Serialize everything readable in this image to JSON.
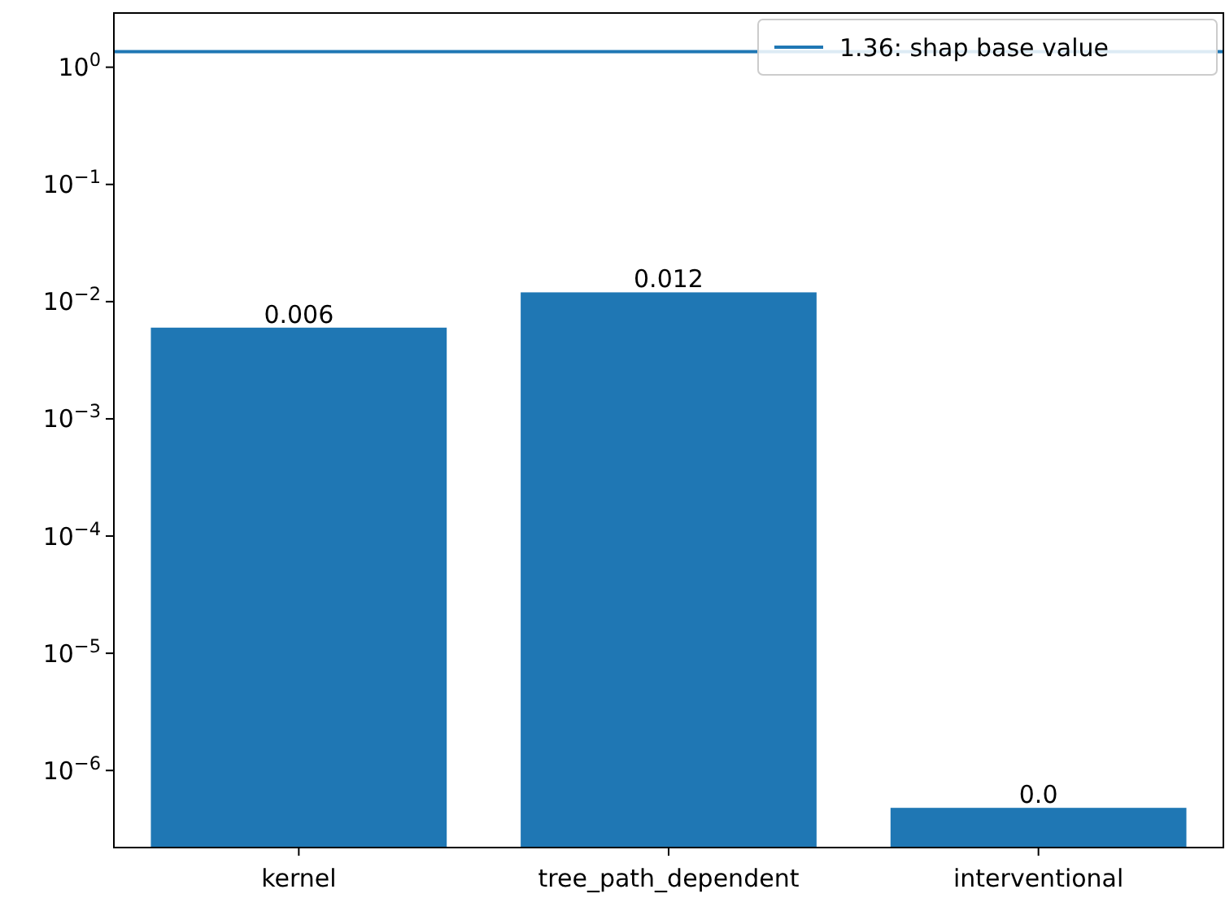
{
  "chart_data": {
    "type": "bar",
    "categories": [
      "kernel",
      "tree_path_dependent",
      "interventional"
    ],
    "values": [
      0.006,
      0.012,
      4.8e-07
    ],
    "color": "#1f77b4",
    "value_labels": [
      "0.006",
      "0.012",
      "0.0"
    ],
    "log": true,
    "ylim": [
      2.2e-07,
      2.9
    ],
    "yticks": [
      {
        "value": 1e-06,
        "label": "10$^{−6}$"
      },
      {
        "value": 1e-05,
        "label": "10$^{−5}$"
      },
      {
        "value": 0.0001,
        "label": "10$^{−4}$"
      },
      {
        "value": 0.001,
        "label": "10$^{−3}$"
      },
      {
        "value": 0.01,
        "label": "10$^{−2}$"
      },
      {
        "value": 0.1,
        "label": "10$^{−1}$"
      },
      {
        "value": 1,
        "label": "10$^{0}$"
      }
    ],
    "ref_lines": [
      {
        "axis": "y",
        "value": 1.36,
        "label": "1.36: shap base value",
        "color": "#1f77b4"
      }
    ],
    "legend": "top right"
  }
}
